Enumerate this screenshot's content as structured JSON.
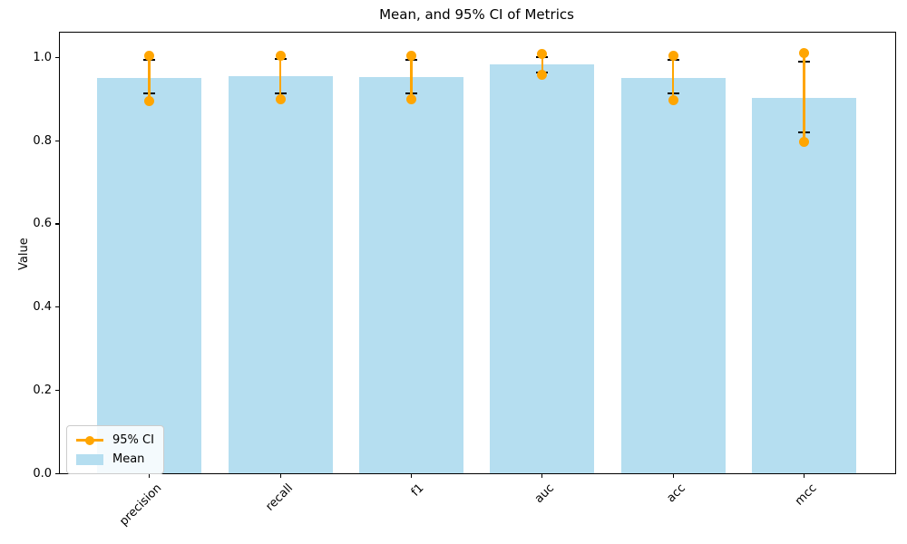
{
  "title": "Mean, and 95% CI of Metrics",
  "legend": {
    "ci_label": "95% CI",
    "mean_label": "Mean"
  },
  "colors": {
    "bar": "#b5def0",
    "ci": "#ffa500",
    "cap": "#000000",
    "axis": "#000000"
  },
  "chart_data": {
    "type": "bar",
    "title": "Mean, and 95% CI of Metrics",
    "xlabel": "",
    "ylabel": "Value",
    "categories": [
      "precision",
      "recall",
      "f1",
      "auc",
      "acc",
      "mcc"
    ],
    "series": [
      {
        "name": "Mean",
        "values": [
          0.95,
          0.956,
          0.953,
          0.983,
          0.952,
          0.902
        ]
      },
      {
        "name": "95% CI",
        "ci_low": [
          0.896,
          0.9,
          0.899,
          0.959,
          0.897,
          0.797
        ],
        "ci_high": [
          1.004,
          1.005,
          1.004,
          1.008,
          1.005,
          1.011
        ]
      }
    ],
    "error_caps": {
      "low": [
        0.913,
        0.914,
        0.913,
        0.964,
        0.913,
        0.82
      ],
      "high": [
        0.994,
        0.996,
        0.994,
        1.002,
        0.994,
        0.99
      ]
    },
    "ytick_labels": [
      "0.0",
      "0.2",
      "0.4",
      "0.6",
      "0.8",
      "1.0"
    ],
    "yticks": [
      0.0,
      0.2,
      0.4,
      0.6,
      0.8,
      1.0
    ],
    "ylim": [
      0,
      1.062
    ],
    "grid": false,
    "legend_position": "lower left",
    "bar_color": "#b5def0",
    "ci_color": "#ffa500"
  }
}
